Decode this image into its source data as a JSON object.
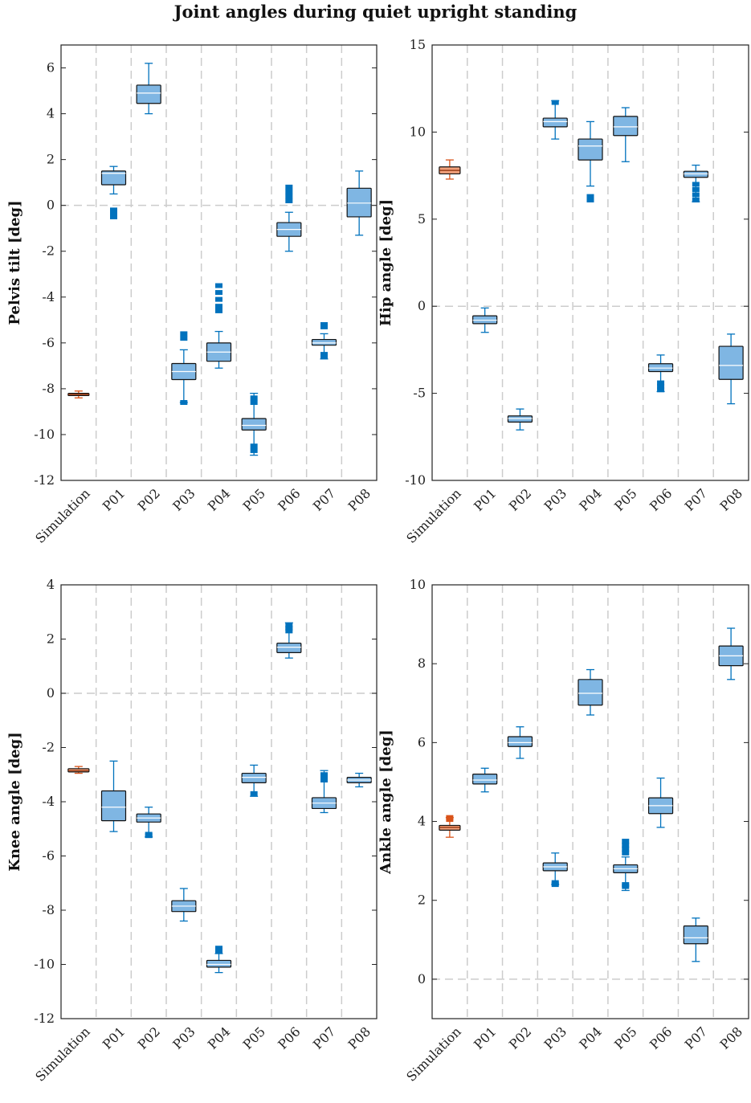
{
  "title": "Joint angles during quiet upright standing",
  "colors": {
    "simulation": "#d95319",
    "participant_fill": "#7fb6e3",
    "participant_edge": "#0072bd",
    "box_edge": "#111111",
    "grid": "#cccccc"
  },
  "chart_data": [
    {
      "type": "box",
      "ylabel": "Pelvis tilt [deg]",
      "ylim": [
        -12,
        7
      ],
      "yticks": [
        6,
        4,
        2,
        0,
        -2,
        -4,
        -6,
        -8,
        -10,
        -12
      ],
      "categories": [
        "Simulation",
        "P01",
        "P02",
        "P03",
        "P04",
        "P05",
        "P06",
        "P07",
        "P08"
      ],
      "boxes": [
        {
          "min": -8.4,
          "q1": -8.3,
          "median": -8.25,
          "q3": -8.2,
          "max": -8.1,
          "outliers": []
        },
        {
          "min": 0.5,
          "q1": 0.9,
          "median": 1.4,
          "q3": 1.5,
          "max": 1.7,
          "outliers": [
            -0.2,
            -0.3,
            -0.4,
            -0.5
          ]
        },
        {
          "min": 4.0,
          "q1": 4.45,
          "median": 4.9,
          "q3": 5.25,
          "max": 6.2,
          "outliers": []
        },
        {
          "min": -8.6,
          "q1": -7.6,
          "median": -7.25,
          "q3": -6.9,
          "max": -6.3,
          "outliers": [
            -5.6,
            -5.8,
            -8.6
          ]
        },
        {
          "min": -7.1,
          "q1": -6.8,
          "median": -6.4,
          "q3": -6.0,
          "max": -5.5,
          "outliers": [
            -3.5,
            -3.8,
            -4.1,
            -4.4,
            -4.6
          ]
        },
        {
          "min": -10.9,
          "q1": -9.8,
          "median": -9.6,
          "q3": -9.3,
          "max": -8.2,
          "outliers": [
            -8.4,
            -8.6,
            -10.5,
            -10.7
          ]
        },
        {
          "min": -2.0,
          "q1": -1.35,
          "median": -1.05,
          "q3": -0.75,
          "max": -0.3,
          "outliers": [
            0.2,
            0.4,
            0.6,
            0.8
          ]
        },
        {
          "min": -6.7,
          "q1": -6.1,
          "median": -6.0,
          "q3": -5.85,
          "max": -5.6,
          "outliers": [
            -5.2,
            -5.3,
            -6.5,
            -6.6
          ]
        },
        {
          "min": -1.3,
          "q1": -0.5,
          "median": 0.1,
          "q3": 0.75,
          "max": 1.5,
          "outliers": []
        }
      ]
    },
    {
      "type": "box",
      "ylabel": "Hip angle [deg]",
      "ylim": [
        -10,
        15
      ],
      "yticks": [
        15,
        10,
        5,
        0,
        -5,
        -10
      ],
      "categories": [
        "Simulation",
        "P01",
        "P02",
        "P03",
        "P04",
        "P05",
        "P06",
        "P07",
        "P08"
      ],
      "boxes": [
        {
          "min": 7.3,
          "q1": 7.6,
          "median": 7.8,
          "q3": 8.0,
          "max": 8.4,
          "outliers": []
        },
        {
          "min": -1.5,
          "q1": -1.0,
          "median": -0.8,
          "q3": -0.55,
          "max": -0.1,
          "outliers": []
        },
        {
          "min": -7.1,
          "q1": -6.65,
          "median": -6.45,
          "q3": -6.3,
          "max": -5.9,
          "outliers": []
        },
        {
          "min": 9.6,
          "q1": 10.3,
          "median": 10.6,
          "q3": 10.8,
          "max": 11.8,
          "outliers": [
            11.7
          ]
        },
        {
          "min": 6.9,
          "q1": 8.4,
          "median": 9.2,
          "q3": 9.6,
          "max": 10.6,
          "outliers": [
            6.1,
            6.3
          ]
        },
        {
          "min": 8.3,
          "q1": 9.8,
          "median": 10.3,
          "q3": 10.9,
          "max": 11.4,
          "outliers": []
        },
        {
          "min": -4.9,
          "q1": -3.75,
          "median": -3.55,
          "q3": -3.3,
          "max": -2.8,
          "outliers": [
            -4.4,
            -4.6,
            -4.8
          ]
        },
        {
          "min": 6.0,
          "q1": 7.4,
          "median": 7.6,
          "q3": 7.75,
          "max": 8.1,
          "outliers": [
            6.1,
            6.4,
            6.7,
            7.0
          ]
        },
        {
          "min": -5.6,
          "q1": -4.2,
          "median": -3.4,
          "q3": -2.3,
          "max": -1.6,
          "outliers": []
        }
      ]
    },
    {
      "type": "box",
      "ylabel": "Knee angle [deg]",
      "ylim": [
        -12,
        4
      ],
      "yticks": [
        4,
        2,
        0,
        -2,
        -4,
        -6,
        -8,
        -10,
        -12
      ],
      "categories": [
        "Simulation",
        "P01",
        "P02",
        "P03",
        "P04",
        "P05",
        "P06",
        "P07",
        "P08"
      ],
      "boxes": [
        {
          "min": -2.95,
          "q1": -2.9,
          "median": -2.85,
          "q3": -2.78,
          "max": -2.7,
          "outliers": []
        },
        {
          "min": -5.1,
          "q1": -4.7,
          "median": -4.2,
          "q3": -3.6,
          "max": -2.5,
          "outliers": []
        },
        {
          "min": -5.3,
          "q1": -4.75,
          "median": -4.6,
          "q3": -4.45,
          "max": -4.2,
          "outliers": [
            -5.2,
            -5.25
          ]
        },
        {
          "min": -8.4,
          "q1": -8.05,
          "median": -7.85,
          "q3": -7.65,
          "max": -7.2,
          "outliers": []
        },
        {
          "min": -10.3,
          "q1": -10.1,
          "median": -10.0,
          "q3": -9.85,
          "max": -9.6,
          "outliers": [
            -9.4,
            -9.5
          ]
        },
        {
          "min": -3.8,
          "q1": -3.3,
          "median": -3.1,
          "q3": -2.95,
          "max": -2.65,
          "outliers": [
            -3.7
          ]
        },
        {
          "min": 1.3,
          "q1": 1.5,
          "median": 1.7,
          "q3": 1.85,
          "max": 2.6,
          "outliers": [
            2.3,
            2.4,
            2.5
          ]
        },
        {
          "min": -4.4,
          "q1": -4.25,
          "median": -4.05,
          "q3": -3.85,
          "max": -2.85,
          "outliers": [
            -3.0,
            -3.1,
            -3.2
          ]
        },
        {
          "min": -3.45,
          "q1": -3.3,
          "median": -3.2,
          "q3": -3.1,
          "max": -2.95,
          "outliers": []
        }
      ]
    },
    {
      "type": "box",
      "ylabel": "Ankle angle [deg]",
      "ylim": [
        -1,
        10
      ],
      "yticks": [
        10,
        8,
        6,
        4,
        2,
        0
      ],
      "categories": [
        "Simulation",
        "P01",
        "P02",
        "P03",
        "P04",
        "P05",
        "P06",
        "P07",
        "P08"
      ],
      "boxes": [
        {
          "min": 3.6,
          "q1": 3.78,
          "median": 3.85,
          "q3": 3.9,
          "max": 4.1,
          "outliers": [
            4.05,
            4.1
          ]
        },
        {
          "min": 4.75,
          "q1": 4.95,
          "median": 5.05,
          "q3": 5.2,
          "max": 5.35,
          "outliers": []
        },
        {
          "min": 5.6,
          "q1": 5.9,
          "median": 6.0,
          "q3": 6.15,
          "max": 6.4,
          "outliers": []
        },
        {
          "min": 2.4,
          "q1": 2.75,
          "median": 2.85,
          "q3": 2.95,
          "max": 3.2,
          "outliers": [
            2.4,
            2.45
          ]
        },
        {
          "min": 6.7,
          "q1": 6.95,
          "median": 7.25,
          "q3": 7.6,
          "max": 7.85,
          "outliers": []
        },
        {
          "min": 2.25,
          "q1": 2.7,
          "median": 2.8,
          "q3": 2.9,
          "max": 3.1,
          "outliers": [
            2.35,
            2.4,
            3.2,
            3.3,
            3.4,
            3.5
          ]
        },
        {
          "min": 3.85,
          "q1": 4.2,
          "median": 4.4,
          "q3": 4.6,
          "max": 5.1,
          "outliers": []
        },
        {
          "min": 0.45,
          "q1": 0.9,
          "median": 1.05,
          "q3": 1.35,
          "max": 1.55,
          "outliers": []
        },
        {
          "min": 7.6,
          "q1": 7.95,
          "median": 8.2,
          "q3": 8.45,
          "max": 8.9,
          "outliers": []
        }
      ]
    }
  ]
}
